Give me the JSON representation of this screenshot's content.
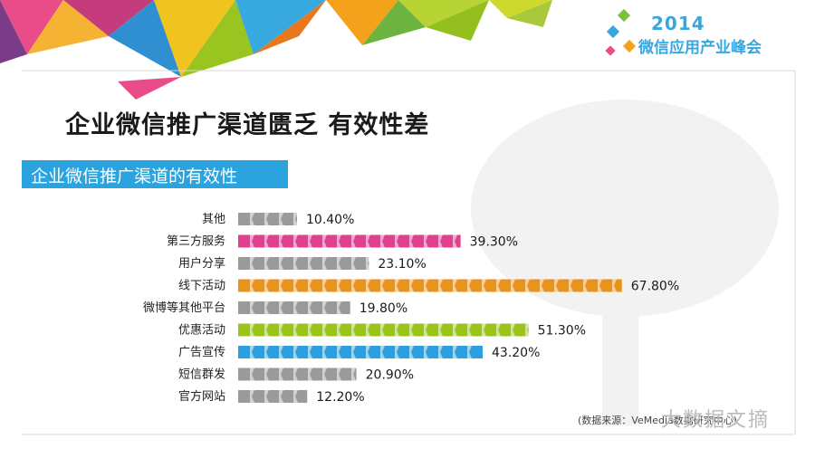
{
  "logo": {
    "year": "2014",
    "name": "微信应用产业峰会"
  },
  "title": "企业微信推广渠道匮乏 有效性差",
  "subtitle": "企业微信推广渠道的有效性",
  "source": "(数据来源：VeMedia数据研究中心)",
  "watermark": "大数据文摘",
  "colors": {
    "gray": "#9a9a9a",
    "pink": "#e0408f",
    "orange": "#e8941a",
    "green": "#9bc31c",
    "blue": "#2b9fe0",
    "subtitle_bg": "#2aa3df"
  },
  "chart_data": {
    "type": "bar",
    "orientation": "horizontal",
    "categories": [
      "其他",
      "第三方服务",
      "用户分享",
      "线下活动",
      "微博等其他平台",
      "优惠活动",
      "广告宣传",
      "短信群发",
      "官方网站"
    ],
    "values": [
      10.4,
      39.3,
      23.1,
      67.8,
      19.8,
      51.3,
      43.2,
      20.9,
      12.2
    ],
    "value_labels": [
      "10.40%",
      "39.30%",
      "23.10%",
      "67.80%",
      "19.80%",
      "51.30%",
      "43.20%",
      "20.90%",
      "12.20%"
    ],
    "bar_colors": [
      "#9a9a9a",
      "#e0408f",
      "#9a9a9a",
      "#e8941a",
      "#9a9a9a",
      "#9bc31c",
      "#2b9fe0",
      "#9a9a9a",
      "#9a9a9a"
    ],
    "xlim": [
      0,
      68
    ]
  }
}
